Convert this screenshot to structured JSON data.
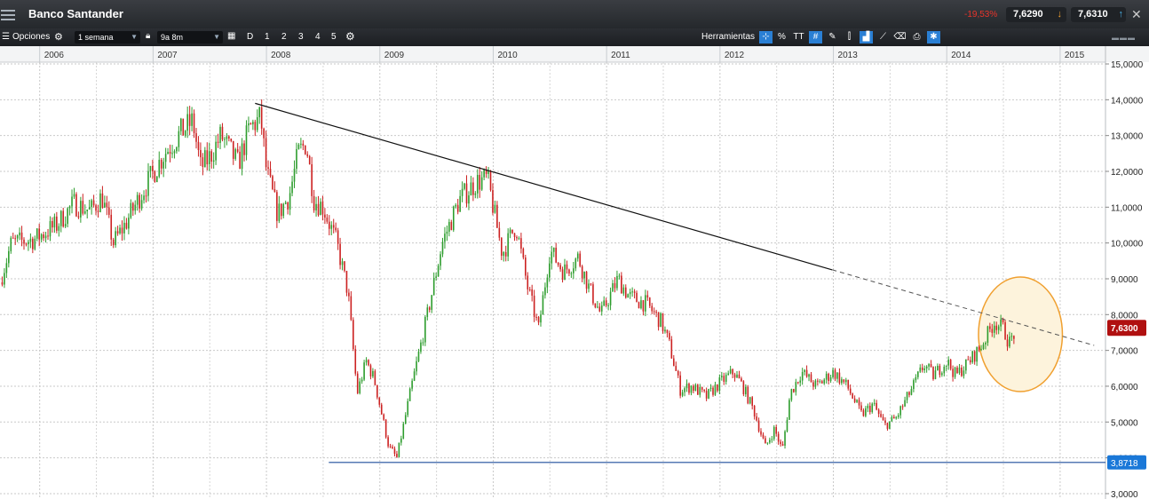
{
  "app": {
    "title": "Banco Santander"
  },
  "quotes": {
    "change": "-19,53%",
    "bid": "7,6290",
    "ask": "7,6310"
  },
  "toolbar": {
    "options_label": "Opciones",
    "period": "1 semana",
    "range": "9a 8m",
    "day_label": "D",
    "preset_1": "1",
    "preset_2": "2",
    "preset_3": "3",
    "preset_4": "4",
    "preset_5": "5",
    "tools_label": "Herramientas",
    "tool_percent": "%",
    "tool_text": "TT"
  },
  "icons": [
    "menu-icon",
    "gear-icon",
    "lock-icon",
    "calendar-icon",
    "crosshair-icon",
    "grid-icon",
    "pencil-icon",
    "chart-type-icon",
    "eraser-icon",
    "print-icon",
    "settings-icon",
    "close-icon"
  ],
  "colors": {
    "up": "#2e9d2e",
    "down": "#cc2222",
    "trendline": "#111111",
    "support": "#1f4e9c",
    "highlight_fill": "#fdf3dc",
    "highlight_stroke": "#f0a030",
    "price_badge": "#b01010",
    "support_badge": "#1a78d8"
  },
  "chart_data": {
    "type": "candlestick",
    "x_labels": [
      "2006",
      "2007",
      "2008",
      "2009",
      "2010",
      "2011",
      "2012",
      "2013",
      "2014",
      "2015"
    ],
    "y_ticks": [
      "15,0000",
      "14,0000",
      "13,0000",
      "12,0000",
      "11,0000",
      "10,0000",
      "9,0000",
      "8,0000",
      "7,0000",
      "6,0000",
      "5,0000",
      "4,0000",
      "3,0000"
    ],
    "ylim": [
      2.85,
      15.05
    ],
    "xlim": [
      2005.65,
      2015.4
    ],
    "grid": true,
    "current_price": 7.63,
    "current_price_label": "7,6300",
    "support_level": 3.8718,
    "support_label": "3,8718",
    "support_start": 2008.55,
    "trendline": {
      "start": [
        2007.9,
        13.9
      ],
      "end": [
        2012.99,
        9.25
      ],
      "extend_to": 2015.3
    },
    "highlight": {
      "center": [
        2014.65,
        7.45
      ],
      "radius_x": 0.37,
      "radius_y": 1.6
    },
    "frequency": "weekly",
    "anchors": [
      [
        2005.65,
        8.9
      ],
      [
        2005.75,
        10.0
      ],
      [
        2005.95,
        10.1
      ],
      [
        2006.15,
        10.5
      ],
      [
        2006.3,
        11.1
      ],
      [
        2006.45,
        10.9
      ],
      [
        2006.55,
        11.3
      ],
      [
        2006.65,
        10.0
      ],
      [
        2006.75,
        10.5
      ],
      [
        2006.9,
        11.4
      ],
      [
        2007.1,
        12.5
      ],
      [
        2007.25,
        13.1
      ],
      [
        2007.35,
        13.4
      ],
      [
        2007.42,
        12.1
      ],
      [
        2007.5,
        12.4
      ],
      [
        2007.6,
        13.0
      ],
      [
        2007.75,
        12.2
      ],
      [
        2007.85,
        13.2
      ],
      [
        2007.95,
        13.5
      ],
      [
        2008.0,
        12.0
      ],
      [
        2008.1,
        10.8
      ],
      [
        2008.2,
        11.3
      ],
      [
        2008.28,
        12.5
      ],
      [
        2008.35,
        12.8
      ],
      [
        2008.42,
        11.2
      ],
      [
        2008.5,
        11.0
      ],
      [
        2008.62,
        10.0
      ],
      [
        2008.72,
        8.6
      ],
      [
        2008.8,
        5.8
      ],
      [
        2008.88,
        6.7
      ],
      [
        2008.95,
        6.2
      ],
      [
        2009.08,
        4.3
      ],
      [
        2009.15,
        4.0
      ],
      [
        2009.28,
        6.0
      ],
      [
        2009.42,
        8.0
      ],
      [
        2009.55,
        10.0
      ],
      [
        2009.7,
        11.2
      ],
      [
        2009.85,
        11.7
      ],
      [
        2009.95,
        11.8
      ],
      [
        2010.08,
        9.7
      ],
      [
        2010.2,
        10.5
      ],
      [
        2010.3,
        8.8
      ],
      [
        2010.4,
        7.6
      ],
      [
        2010.5,
        9.8
      ],
      [
        2010.62,
        9.2
      ],
      [
        2010.75,
        9.6
      ],
      [
        2010.85,
        8.7
      ],
      [
        2010.95,
        8.0
      ],
      [
        2011.1,
        9.0
      ],
      [
        2011.2,
        8.5
      ],
      [
        2011.35,
        8.3
      ],
      [
        2011.48,
        7.8
      ],
      [
        2011.55,
        7.2
      ],
      [
        2011.65,
        5.9
      ],
      [
        2011.75,
        6.0
      ],
      [
        2011.88,
        5.7
      ],
      [
        2012.0,
        6.1
      ],
      [
        2012.12,
        6.4
      ],
      [
        2012.2,
        6.0
      ],
      [
        2012.3,
        5.3
      ],
      [
        2012.4,
        4.3
      ],
      [
        2012.48,
        4.8
      ],
      [
        2012.55,
        4.2
      ],
      [
        2012.62,
        5.8
      ],
      [
        2012.72,
        6.4
      ],
      [
        2012.85,
        6.0
      ],
      [
        2013.0,
        6.4
      ],
      [
        2013.12,
        6.0
      ],
      [
        2013.25,
        5.2
      ],
      [
        2013.35,
        5.5
      ],
      [
        2013.45,
        4.9
      ],
      [
        2013.55,
        5.1
      ],
      [
        2013.62,
        5.5
      ],
      [
        2013.72,
        6.1
      ],
      [
        2013.8,
        6.6
      ],
      [
        2013.88,
        6.3
      ],
      [
        2014.0,
        6.7
      ],
      [
        2014.08,
        6.3
      ],
      [
        2014.2,
        6.7
      ],
      [
        2014.3,
        7.1
      ],
      [
        2014.42,
        7.8
      ],
      [
        2014.5,
        7.6
      ],
      [
        2014.55,
        7.2
      ],
      [
        2014.6,
        7.5
      ]
    ]
  }
}
